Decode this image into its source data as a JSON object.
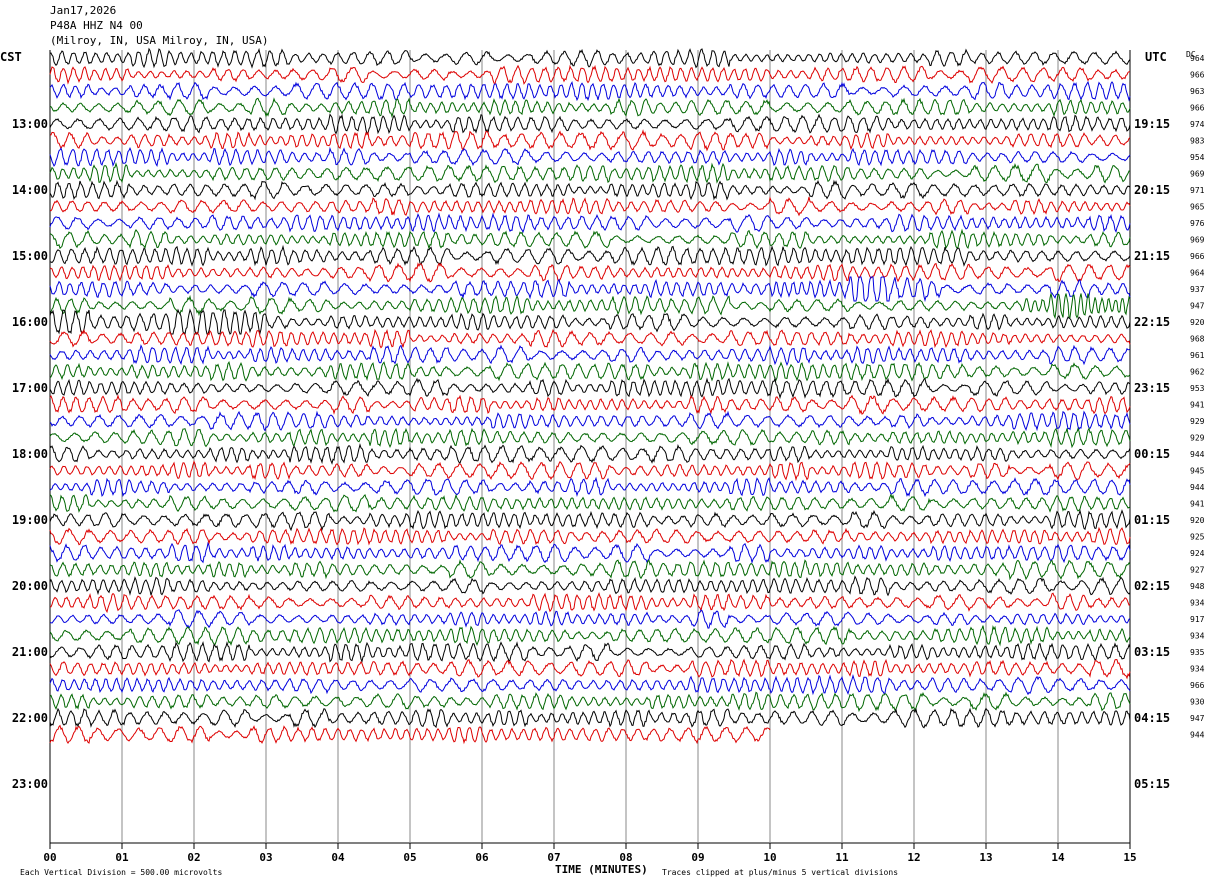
{
  "header": {
    "date": "Jan17,2026",
    "station": "P48A HHZ N4 00",
    "location": "(Milroy, IN, USA Milroy, IN, USA)"
  },
  "left_tz": "CST",
  "right_tz": "UTC",
  "dc_label": "DC",
  "footer": {
    "scale": "Each Vertical Division =  500.00 microvolts",
    "xlabel": "TIME (MINUTES)",
    "clip": "Traces clipped at plus/minus 5 vertical divisions"
  },
  "colors": {
    "cycle": [
      "#000000",
      "#dd0000",
      "#0000dd",
      "#006600"
    ],
    "grid": "#888888"
  },
  "chart_data": {
    "type": "line",
    "title": "P48A HHZ N4 00",
    "xlabel": "TIME (MINUTES)",
    "xlim": [
      0,
      15
    ],
    "x_ticks": [
      "00",
      "01",
      "02",
      "03",
      "04",
      "05",
      "06",
      "07",
      "08",
      "09",
      "10",
      "11",
      "12",
      "13",
      "14",
      "15"
    ],
    "rows_per_hour": 4,
    "start_cst": "12:00",
    "left_hour_labels": [
      "13:00",
      "14:00",
      "15:00",
      "16:00",
      "17:00",
      "18:00",
      "19:00",
      "20:00",
      "21:00",
      "22:00",
      "23:00"
    ],
    "right_hour_labels": [
      "19:15",
      "20:15",
      "21:15",
      "22:15",
      "23:15",
      "00:15",
      "01:15",
      "02:15",
      "03:15",
      "04:15",
      "05:15"
    ],
    "dc_offsets": [
      964,
      966,
      963,
      966,
      974,
      983,
      954,
      969,
      971,
      965,
      976,
      969,
      966,
      964,
      937,
      947,
      920,
      968,
      961,
      962,
      953,
      941,
      929,
      929,
      944,
      945,
      944,
      941,
      920,
      925,
      924,
      927,
      948,
      934,
      917,
      934,
      935,
      934,
      966,
      930,
      947,
      944
    ],
    "last_row_end_minute": 10.0,
    "events": [
      {
        "row": 14,
        "start_min": 10.0,
        "end_min": 12.4,
        "description_amp": 2.2
      },
      {
        "row": 15,
        "start_min": 13.5,
        "end_min": 15.0,
        "description_amp": 1.6
      },
      {
        "row": 16,
        "start_min": 0.0,
        "end_min": 3.0,
        "description_amp": 1.8
      },
      {
        "row": 19,
        "start_min": 3.8,
        "end_min": 5.5,
        "description_amp": 1.2
      }
    ]
  }
}
